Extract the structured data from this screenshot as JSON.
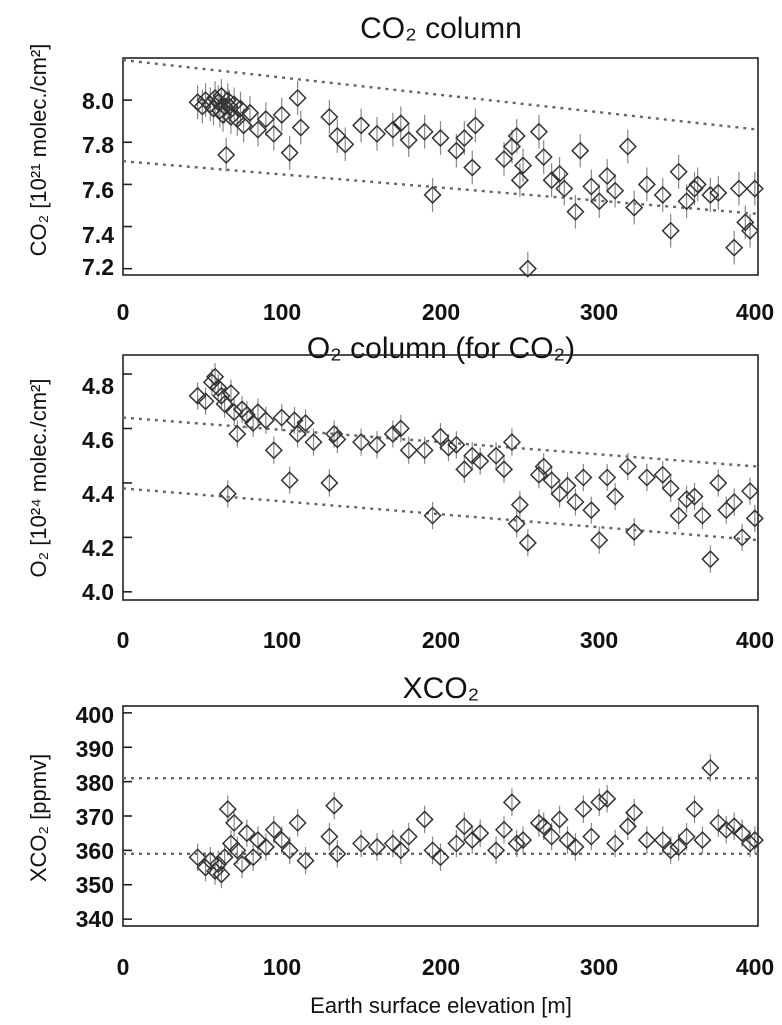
{
  "chart_data": [
    {
      "type": "scatter",
      "title": "CO₂ column",
      "ylabel": "CO₂ [10²¹ molec./cm²]",
      "xlabel": "",
      "xlim": [
        0,
        400
      ],
      "ylim": [
        7.17,
        8.2
      ],
      "xticks": [
        "0",
        "100",
        "200",
        "300",
        "400"
      ],
      "yticks": [
        "7.2",
        "7.4",
        "7.6",
        "7.8",
        "8.0"
      ],
      "ytick_values": [
        7.2,
        7.4,
        7.6,
        7.8,
        8.0
      ],
      "ref_lines": [
        {
          "x": [
            0,
            400
          ],
          "y": [
            8.19,
            7.86
          ]
        },
        {
          "x": [
            0,
            400
          ],
          "y": [
            7.71,
            7.46
          ]
        }
      ],
      "series": [
        {
          "x": [
            47,
            50,
            52,
            55,
            57,
            58,
            60,
            61,
            62,
            63,
            64,
            65,
            66,
            67,
            68,
            70,
            72,
            74,
            76,
            80,
            85,
            90,
            95,
            100,
            105,
            110,
            112,
            130,
            135,
            140,
            150,
            160,
            170,
            175,
            180,
            190,
            195,
            200,
            210,
            215,
            220,
            222,
            240,
            245,
            248,
            250,
            252,
            255,
            262,
            265,
            270,
            275,
            278,
            285,
            288,
            295,
            300,
            305,
            310,
            318,
            322,
            330,
            340,
            345,
            350,
            355,
            360,
            362,
            370,
            375,
            385,
            388,
            392,
            395,
            398
          ],
          "y": [
            7.99,
            7.97,
            8.0,
            7.98,
            7.96,
            8.01,
            7.99,
            7.95,
            8.02,
            7.93,
            7.97,
            7.74,
            8.0,
            7.97,
            7.92,
            7.98,
            7.91,
            7.96,
            7.88,
            7.94,
            7.86,
            7.91,
            7.84,
            7.93,
            7.75,
            8.01,
            7.87,
            7.92,
            7.83,
            7.79,
            7.88,
            7.84,
            7.86,
            7.89,
            7.81,
            7.85,
            7.55,
            7.82,
            7.76,
            7.82,
            7.68,
            7.88,
            7.72,
            7.78,
            7.83,
            7.62,
            7.69,
            7.2,
            7.85,
            7.73,
            7.62,
            7.65,
            7.58,
            7.47,
            7.76,
            7.59,
            7.52,
            7.64,
            7.57,
            7.78,
            7.49,
            7.6,
            7.55,
            7.38,
            7.66,
            7.52,
            7.58,
            7.6,
            7.55,
            7.56,
            7.3,
            7.58,
            7.42,
            7.38,
            7.58
          ],
          "err": 0.08
        }
      ]
    },
    {
      "type": "scatter",
      "title": "O₂ column (for CO₂)",
      "ylabel": "O₂ [10²⁴ molec./cm²]",
      "xlabel": "",
      "xlim": [
        0,
        400
      ],
      "ylim": [
        3.97,
        4.87
      ],
      "xticks": [
        "0",
        "100",
        "200",
        "300",
        "400"
      ],
      "yticks": [
        "4.0",
        "4.2",
        "4.4",
        "4.6",
        "4.8"
      ],
      "ytick_values": [
        4.0,
        4.2,
        4.4,
        4.6,
        4.8
      ],
      "ref_lines": [
        {
          "x": [
            0,
            400
          ],
          "y": [
            4.64,
            4.46
          ]
        },
        {
          "x": [
            0,
            400
          ],
          "y": [
            4.38,
            4.19
          ]
        }
      ],
      "series": [
        {
          "x": [
            47,
            52,
            56,
            58,
            60,
            62,
            64,
            66,
            68,
            70,
            72,
            75,
            78,
            82,
            85,
            90,
            95,
            100,
            105,
            108,
            110,
            115,
            120,
            130,
            133,
            135,
            150,
            160,
            170,
            175,
            180,
            190,
            195,
            200,
            205,
            210,
            215,
            220,
            225,
            235,
            240,
            245,
            248,
            250,
            255,
            262,
            265,
            270,
            275,
            280,
            285,
            290,
            295,
            300,
            305,
            310,
            318,
            322,
            330,
            340,
            345,
            350,
            355,
            360,
            365,
            370,
            375,
            380,
            385,
            390,
            395,
            398
          ],
          "y": [
            4.72,
            4.7,
            4.77,
            4.79,
            4.75,
            4.72,
            4.69,
            4.36,
            4.73,
            4.66,
            4.58,
            4.67,
            4.65,
            4.62,
            4.66,
            4.63,
            4.52,
            4.64,
            4.41,
            4.63,
            4.58,
            4.62,
            4.55,
            4.4,
            4.58,
            4.56,
            4.55,
            4.54,
            4.58,
            4.6,
            4.52,
            4.52,
            4.28,
            4.57,
            4.53,
            4.54,
            4.45,
            4.5,
            4.48,
            4.5,
            4.45,
            4.55,
            4.25,
            4.32,
            4.18,
            4.43,
            4.46,
            4.41,
            4.36,
            4.39,
            4.33,
            4.42,
            4.3,
            4.19,
            4.42,
            4.35,
            4.46,
            4.22,
            4.42,
            4.43,
            4.38,
            4.28,
            4.34,
            4.35,
            4.28,
            4.12,
            4.4,
            4.3,
            4.33,
            4.2,
            4.37,
            4.27
          ],
          "err": 0.05
        }
      ]
    },
    {
      "type": "scatter",
      "title": "XCO₂",
      "ylabel": "XCO₂ [ppmv]",
      "xlabel": "Earth surface elevation [m]",
      "xlim": [
        0,
        400
      ],
      "ylim": [
        338,
        402
      ],
      "xticks": [
        "0",
        "100",
        "200",
        "300",
        "400"
      ],
      "yticks": [
        "340",
        "350",
        "360",
        "370",
        "380",
        "390",
        "400"
      ],
      "ytick_values": [
        340,
        350,
        360,
        370,
        380,
        390,
        400
      ],
      "ref_lines": [
        {
          "x": [
            0,
            400
          ],
          "y": [
            381,
            381
          ]
        },
        {
          "x": [
            0,
            400
          ],
          "y": [
            359,
            359
          ]
        }
      ],
      "series": [
        {
          "x": [
            47,
            52,
            55,
            58,
            60,
            62,
            64,
            66,
            68,
            70,
            72,
            75,
            78,
            82,
            85,
            90,
            95,
            100,
            105,
            110,
            115,
            130,
            133,
            135,
            150,
            160,
            170,
            175,
            180,
            190,
            195,
            200,
            210,
            215,
            220,
            225,
            235,
            240,
            245,
            248,
            252,
            262,
            265,
            270,
            275,
            280,
            285,
            290,
            295,
            300,
            305,
            310,
            318,
            322,
            330,
            340,
            345,
            350,
            355,
            360,
            365,
            370,
            375,
            380,
            385,
            390,
            395,
            398
          ],
          "y": [
            358,
            355,
            357,
            354,
            356,
            353,
            358,
            372,
            362,
            368,
            360,
            356,
            365,
            358,
            363,
            361,
            366,
            363,
            360,
            368,
            357,
            364,
            373,
            359,
            362,
            361,
            362,
            360,
            364,
            369,
            360,
            358,
            362,
            367,
            363,
            365,
            360,
            366,
            374,
            362,
            363,
            368,
            367,
            364,
            369,
            363,
            361,
            372,
            364,
            374,
            375,
            362,
            367,
            371,
            363,
            363,
            360,
            361,
            364,
            372,
            363,
            384,
            368,
            366,
            367,
            365,
            362,
            363
          ],
          "err": 4
        }
      ]
    }
  ]
}
